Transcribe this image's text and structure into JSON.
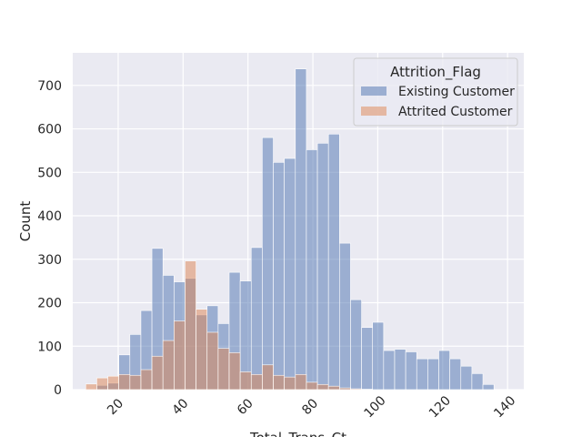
{
  "chart_data": {
    "type": "bar",
    "title": "",
    "xlabel": "Total_Trans_Ct",
    "ylabel": "Count",
    "xlim": [
      6,
      145
    ],
    "ylim": [
      0,
      775
    ],
    "x_ticks": [
      20,
      40,
      60,
      80,
      100,
      120,
      140
    ],
    "y_ticks": [
      0,
      100,
      200,
      300,
      400,
      500,
      600,
      700
    ],
    "grid": true,
    "legend": {
      "title": "Attrition_Flag",
      "position": "top-right"
    },
    "bin_edges": [
      10,
      13.4,
      16.8,
      20.2,
      23.6,
      27.0,
      30.4,
      33.8,
      37.2,
      40.6,
      44.0,
      47.4,
      50.8,
      54.2,
      57.6,
      61.0,
      64.4,
      67.8,
      71.2,
      74.6,
      78.0,
      81.4,
      84.8,
      88.2,
      91.6,
      95.0,
      98.4,
      101.8,
      105.2,
      108.6,
      112.0,
      115.4,
      118.8,
      122.2,
      125.6,
      129.0,
      132.4,
      135.8,
      139.2
    ],
    "series": [
      {
        "name": "Existing Customer",
        "color": "#4c72b0",
        "values": [
          0,
          10,
          15,
          80,
          127,
          182,
          325,
          263,
          248,
          256,
          172,
          193,
          152,
          270,
          250,
          327,
          580,
          523,
          532,
          738,
          552,
          567,
          588,
          337,
          207,
          143,
          155,
          90,
          93,
          87,
          71,
          71,
          90,
          71,
          54,
          37,
          12,
          0
        ]
      },
      {
        "name": "Attrited Customer",
        "color": "#dd8452",
        "values": [
          13,
          27,
          31,
          35,
          33,
          46,
          77,
          113,
          158,
          296,
          185,
          132,
          95,
          85,
          41,
          35,
          57,
          33,
          29,
          35,
          17,
          12,
          8,
          4,
          2,
          1,
          0,
          0,
          0,
          0,
          0,
          0,
          0,
          0,
          0,
          0,
          0,
          0
        ]
      }
    ]
  }
}
